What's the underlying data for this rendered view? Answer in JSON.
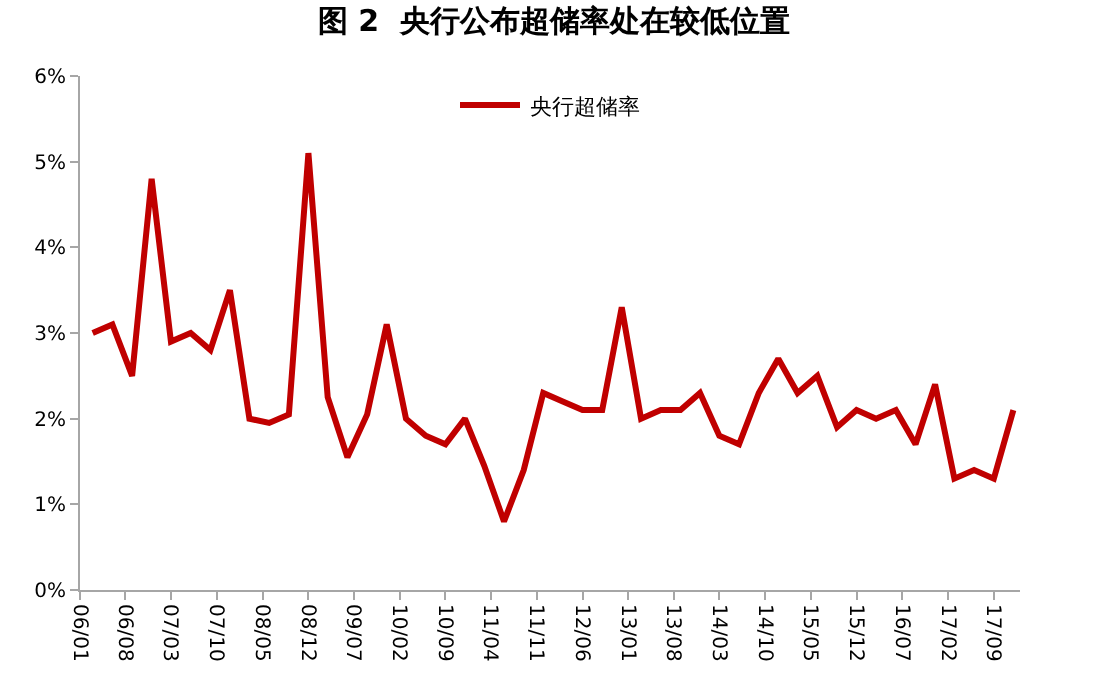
{
  "chart_data": {
    "type": "line",
    "title": "图 2  央行公布超储率处在较低位置",
    "x": [
      "2006-03",
      "2006-06",
      "2006-09",
      "2006-12",
      "2007-03",
      "2007-06",
      "2007-09",
      "2007-12",
      "2008-03",
      "2008-06",
      "2008-09",
      "2008-12",
      "2009-03",
      "2009-06",
      "2009-09",
      "2009-12",
      "2010-03",
      "2010-06",
      "2010-09",
      "2010-12",
      "2011-03",
      "2011-06",
      "2011-09",
      "2011-12",
      "2012-03",
      "2012-06",
      "2012-09",
      "2012-12",
      "2013-03",
      "2013-06",
      "2013-09",
      "2013-12",
      "2014-03",
      "2014-06",
      "2014-09",
      "2014-12",
      "2015-03",
      "2015-06",
      "2015-09",
      "2015-12",
      "2016-03",
      "2016-06",
      "2016-09",
      "2016-12",
      "2017-03",
      "2017-06",
      "2017-09",
      "2017-12"
    ],
    "series": [
      {
        "name": "央行超储率",
        "color": "#c00000",
        "values": [
          3.0,
          3.1,
          2.5,
          4.8,
          2.9,
          3.0,
          2.8,
          3.5,
          2.0,
          1.95,
          2.05,
          5.1,
          2.25,
          1.55,
          2.05,
          3.1,
          2.0,
          1.8,
          1.7,
          2.0,
          1.45,
          0.8,
          1.4,
          2.3,
          2.2,
          2.1,
          2.1,
          3.3,
          2.0,
          2.1,
          2.1,
          2.3,
          1.8,
          1.7,
          2.3,
          2.7,
          2.3,
          2.5,
          1.9,
          2.1,
          2.0,
          2.1,
          1.7,
          2.4,
          1.3,
          1.4,
          1.3,
          2.1
        ]
      }
    ],
    "xlim": [
      "2006-01",
      "2018-01"
    ],
    "xticks": [
      {
        "value": "2006-01",
        "label": "06/01"
      },
      {
        "value": "2006-08",
        "label": "06/08"
      },
      {
        "value": "2007-03",
        "label": "07/03"
      },
      {
        "value": "2007-10",
        "label": "07/10"
      },
      {
        "value": "2008-05",
        "label": "08/05"
      },
      {
        "value": "2008-12",
        "label": "08/12"
      },
      {
        "value": "2009-07",
        "label": "09/07"
      },
      {
        "value": "2010-02",
        "label": "10/02"
      },
      {
        "value": "2010-09",
        "label": "10/09"
      },
      {
        "value": "2011-04",
        "label": "11/04"
      },
      {
        "value": "2011-11",
        "label": "11/11"
      },
      {
        "value": "2012-06",
        "label": "12/06"
      },
      {
        "value": "2013-01",
        "label": "13/01"
      },
      {
        "value": "2013-08",
        "label": "13/08"
      },
      {
        "value": "2014-03",
        "label": "14/03"
      },
      {
        "value": "2014-10",
        "label": "14/10"
      },
      {
        "value": "2015-05",
        "label": "15/05"
      },
      {
        "value": "2015-12",
        "label": "15/12"
      },
      {
        "value": "2016-07",
        "label": "16/07"
      },
      {
        "value": "2017-02",
        "label": "17/02"
      },
      {
        "value": "2017-09",
        "label": "17/09"
      }
    ],
    "ylim": [
      0,
      6
    ],
    "yticks": [
      {
        "value": 0,
        "label": "0%"
      },
      {
        "value": 1,
        "label": "1%"
      },
      {
        "value": 2,
        "label": "2%"
      },
      {
        "value": 3,
        "label": "3%"
      },
      {
        "value": 4,
        "label": "4%"
      },
      {
        "value": 5,
        "label": "5%"
      },
      {
        "value": 6,
        "label": "6%"
      }
    ],
    "grid": false,
    "legend": "top",
    "marker": "none",
    "line_style": "solid"
  }
}
